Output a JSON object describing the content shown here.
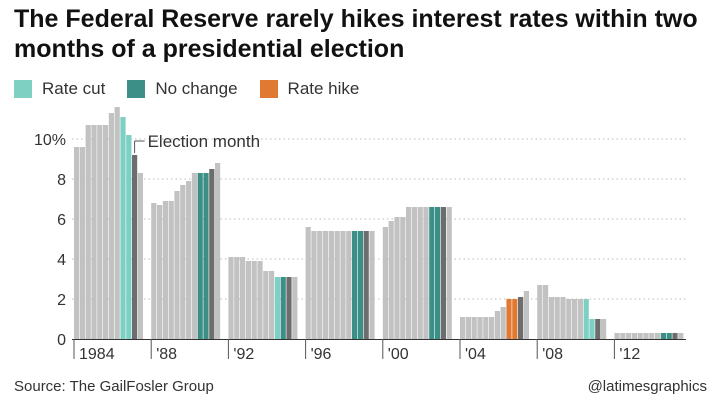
{
  "title": "The Federal Reserve rarely hikes interest rates within two months of a presidential election",
  "legend": [
    {
      "label": "Rate cut",
      "color": "#7dd0c2"
    },
    {
      "label": "No change",
      "color": "#3c8f86"
    },
    {
      "label": "Rate hike",
      "color": "#e07a32"
    }
  ],
  "source": "Source: The GailFosler Group",
  "credit": "@latimesgraphics",
  "chart_data": {
    "type": "bar",
    "title": "The Federal Reserve rarely hikes interest rates within two months of a presidential election",
    "xlabel": "",
    "ylabel": "",
    "ylim": [
      0,
      12
    ],
    "yticks": [
      0,
      2,
      4,
      6,
      8,
      10
    ],
    "ytick_labels": [
      "0",
      "2",
      "4",
      "6",
      "8",
      "10%"
    ],
    "grid": "dotted horizontal",
    "legend_position": "top-left",
    "annotation": {
      "text": "Election month",
      "group": 0
    },
    "colors": {
      "base": "#c2c2c2",
      "cut": "#7dd0c2",
      "none": "#3c8f86",
      "hike": "#e07a32",
      "election": "#6d6d6d"
    },
    "groups": [
      {
        "label": "1984",
        "values": [
          9.6,
          9.6,
          10.7,
          10.7,
          10.7,
          10.7,
          11.3,
          11.6,
          11.1,
          10.2,
          9.2,
          8.3
        ],
        "types": [
          "base",
          "base",
          "base",
          "base",
          "base",
          "base",
          "base",
          "base",
          "cut",
          "cut",
          "election",
          "base"
        ]
      },
      {
        "label": "'88",
        "values": [
          6.8,
          6.7,
          6.9,
          6.9,
          7.4,
          7.7,
          7.9,
          8.3,
          8.3,
          8.3,
          8.5,
          8.8
        ],
        "types": [
          "base",
          "base",
          "base",
          "base",
          "base",
          "base",
          "base",
          "base",
          "none",
          "none",
          "election",
          "base"
        ]
      },
      {
        "label": "'92",
        "values": [
          4.1,
          4.1,
          4.1,
          3.9,
          3.9,
          3.9,
          3.4,
          3.4,
          3.1,
          3.1,
          3.1,
          3.1
        ],
        "types": [
          "base",
          "base",
          "base",
          "base",
          "base",
          "base",
          "base",
          "base",
          "cut",
          "none",
          "election",
          "base"
        ]
      },
      {
        "label": "'96",
        "values": [
          5.6,
          5.4,
          5.4,
          5.4,
          5.4,
          5.4,
          5.4,
          5.4,
          5.4,
          5.4,
          5.4,
          5.4
        ],
        "types": [
          "base",
          "base",
          "base",
          "base",
          "base",
          "base",
          "base",
          "base",
          "none",
          "none",
          "election",
          "base"
        ]
      },
      {
        "label": "'00",
        "values": [
          5.6,
          5.9,
          6.1,
          6.1,
          6.6,
          6.6,
          6.6,
          6.6,
          6.6,
          6.6,
          6.6,
          6.6
        ],
        "types": [
          "base",
          "base",
          "base",
          "base",
          "base",
          "base",
          "base",
          "base",
          "none",
          "none",
          "election",
          "base"
        ]
      },
      {
        "label": "'04",
        "values": [
          1.1,
          1.1,
          1.1,
          1.1,
          1.1,
          1.1,
          1.4,
          1.6,
          2.0,
          2.0,
          2.1,
          2.4
        ],
        "types": [
          "base",
          "base",
          "base",
          "base",
          "base",
          "base",
          "base",
          "base",
          "hike",
          "hike",
          "election",
          "base"
        ]
      },
      {
        "label": "'08",
        "values": [
          2.7,
          2.7,
          2.1,
          2.1,
          2.1,
          2.0,
          2.0,
          2.0,
          2.0,
          1.0,
          1.0,
          1.0
        ],
        "types": [
          "base",
          "base",
          "base",
          "base",
          "base",
          "base",
          "base",
          "base",
          "cut",
          "cut",
          "election",
          "base"
        ]
      },
      {
        "label": "'12",
        "values": [
          0.3,
          0.3,
          0.3,
          0.3,
          0.3,
          0.3,
          0.3,
          0.3,
          0.3,
          0.3,
          0.3,
          0.3
        ],
        "types": [
          "base",
          "base",
          "base",
          "base",
          "base",
          "base",
          "base",
          "base",
          "none",
          "none",
          "election",
          "base"
        ]
      }
    ]
  }
}
